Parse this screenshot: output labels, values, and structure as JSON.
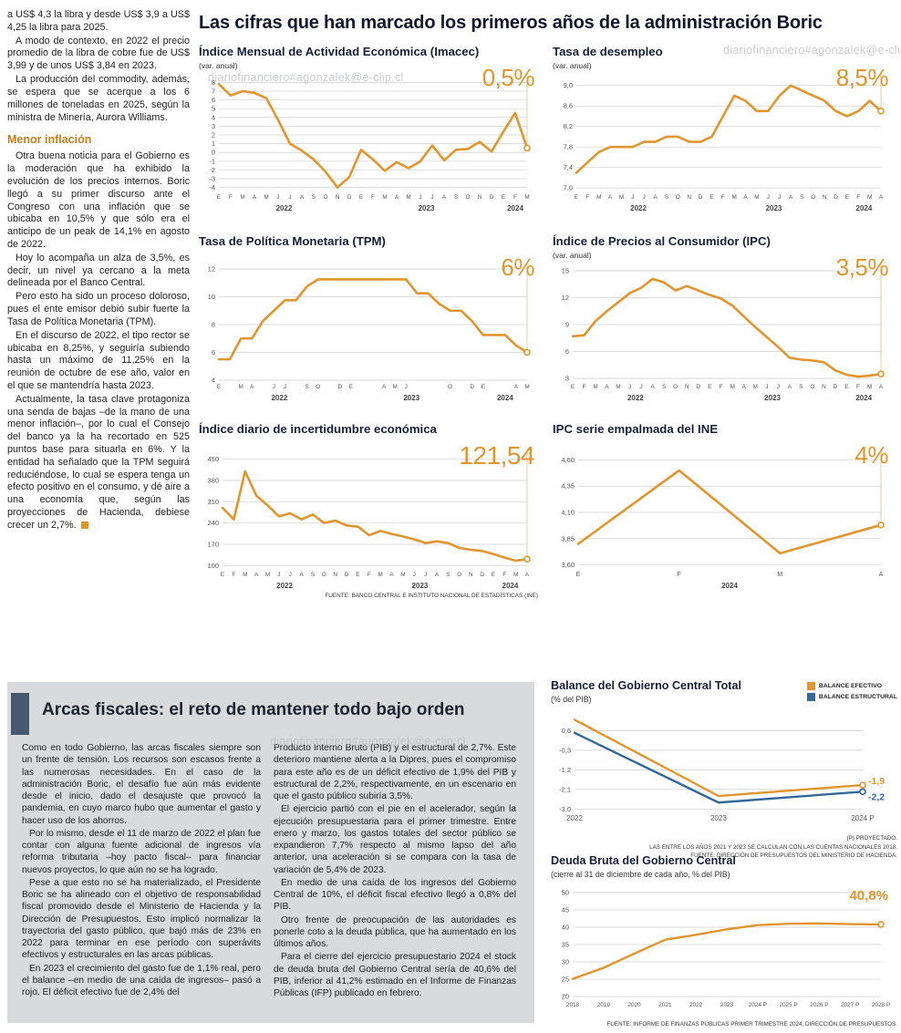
{
  "watermark": "diariofinanciero#agonzalek@e-clip.cl",
  "colors": {
    "orange": "#E2952D",
    "blue": "#33689D",
    "gray_box": "#d9dadb",
    "accent_bar": "#47596e"
  },
  "headline": "Las cifras que han marcado los primeros años de la administración Boric",
  "left_article": {
    "paras_top": [
      "a US$ 4,3 la libra y desde US$ 3,9 a US$ 4,25 la libra para 2025.",
      "A modo de contexto, en 2022 el precio promedio de la libra de cobre fue de US$ 3,99 y de unos US$ 3,84 en 2023.",
      "La producción del commodity, además, se espera que se acerque a los 6 millones de toneladas en 2025, según la ministra de Minería, Aurora Williams."
    ],
    "subhead": "Menor inflación",
    "paras_bottom": [
      "Otra buena noticia para el Gobierno es la moderación que ha exhibido la evolución de los precios internos. Boric llegó a su primer discurso ante el Congreso con una inflación que se ubicaba en 10,5% y que sólo era el anticipo de un peak de 14,1% en agosto de 2022.",
      "Hoy lo acompaña un alza de 3,5%, es decir, un nivel ya cercano a la meta delineada por el Banco Central.",
      "Pero esto ha sido un proceso doloroso, pues el ente emisor debió subir fuerte la Tasa de Política Monetaria (TPM).",
      "En el discurso de 2022, el tipo rector se ubicaba en 8,25%, y seguiría subiendo hasta un máximo de 11,25% en la reunión de octubre de ese año, valor en el que se mantendría hasta 2023.",
      "Actualmente, la tasa clave protagoniza una senda de bajas –de la mano de una menor inflación–, por lo cual el Consejo del banco ya la ha recortado en 525 puntos base para situarla en 6%. Y la entidad ha señalado que la TPM seguirá reduciéndose, lo cual se espera tenga un efecto positivo en el consumo, y dé aire a una economía que, según las proyecciones de Hacienda, debiese crecer un 2,7%."
    ]
  },
  "source_top": "FUENTE: BANCO CENTRAL E INSTITUTO NACIONAL DE ESTADÍSTICAS (INE)",
  "chart_data": [
    {
      "type": "line",
      "title": "Índice Mensual de Actividad Económica (Imacec)",
      "subtitle": "(var. anual)",
      "big_label": "0,5%",
      "ylim": [
        -4.35,
        8.35
      ],
      "yticks": [
        [
          8,
          "8"
        ],
        [
          7,
          "7"
        ],
        [
          6,
          "6"
        ],
        [
          5,
          "5"
        ],
        [
          4,
          "4"
        ],
        [
          3,
          "3"
        ],
        [
          2,
          "2"
        ],
        [
          1,
          "1"
        ],
        [
          0,
          "0"
        ],
        [
          -1,
          "-1"
        ],
        [
          -2,
          "-2"
        ],
        [
          -3,
          "-3"
        ],
        [
          -4,
          "-4"
        ]
      ],
      "x_labels": [
        "E",
        "F",
        "M",
        "A",
        "M",
        "J",
        "J",
        "A",
        "S",
        "O",
        "N",
        "D",
        "E",
        "F",
        "M",
        "A",
        "M",
        "J",
        "J",
        "A",
        "S",
        "O",
        "N",
        "D",
        "E",
        "F",
        "M"
      ],
      "year_groups": [
        {
          "label": "2022",
          "from": 0,
          "to": 11
        },
        {
          "label": "2023",
          "from": 12,
          "to": 23
        },
        {
          "label": "2024",
          "from": 24,
          "to": 26
        }
      ],
      "ml": 22,
      "series": [
        {
          "name": "Imacec",
          "color": "#E2952D",
          "width": 2.6,
          "values": [
            7.8,
            6.5,
            7.0,
            6.8,
            6.2,
            3.7,
            1.0,
            0.2,
            -0.8,
            -2.2,
            -4.0,
            -2.8,
            0.3,
            -0.8,
            -2.1,
            -1.1,
            -1.8,
            -1.0,
            0.8,
            -0.9,
            0.3,
            0.4,
            1.2,
            0.1,
            2.4,
            4.5,
            0.5
          ]
        }
      ]
    },
    {
      "type": "line",
      "title": "Tasa de desempleo",
      "subtitle": "(var. anual)",
      "big_label": "8,5%",
      "ylim": [
        6.95,
        9.12
      ],
      "yticks": [
        [
          9.0,
          "9,0"
        ],
        [
          8.6,
          "8,6"
        ],
        [
          8.2,
          "8,2"
        ],
        [
          7.8,
          "7,8"
        ],
        [
          7.4,
          "7,4"
        ],
        [
          7.0,
          "7,0"
        ]
      ],
      "x_labels": [
        "E",
        "F",
        "M",
        "A",
        "M",
        "J",
        "J",
        "A",
        "S",
        "O",
        "N",
        "D",
        "E",
        "F",
        "M",
        "A",
        "M",
        "J",
        "J",
        "A",
        "S",
        "O",
        "N",
        "D",
        "E",
        "F",
        "M",
        "A"
      ],
      "year_groups": [
        {
          "label": "2022",
          "from": 0,
          "to": 11
        },
        {
          "label": "2023",
          "from": 12,
          "to": 23
        },
        {
          "label": "2024",
          "from": 24,
          "to": 27
        }
      ],
      "ml": 26,
      "series": [
        {
          "name": "Tasa de desempleo",
          "color": "#E2952D",
          "width": 2.6,
          "values": [
            7.3,
            7.5,
            7.7,
            7.8,
            7.8,
            7.8,
            7.9,
            7.9,
            8.0,
            8.0,
            7.9,
            7.9,
            8.0,
            8.4,
            8.8,
            8.7,
            8.5,
            8.5,
            8.8,
            9.0,
            8.9,
            8.8,
            8.7,
            8.5,
            8.4,
            8.5,
            8.7,
            8.5
          ]
        }
      ]
    },
    {
      "type": "line",
      "title": "Tasa de Política Monetaria (TPM)",
      "subtitle": "",
      "big_label": "6%",
      "ylim": [
        4,
        12
      ],
      "yticks": [
        [
          12,
          "12"
        ],
        [
          10,
          "10"
        ],
        [
          8,
          "8"
        ],
        [
          6,
          "6"
        ],
        [
          4,
          "4"
        ]
      ],
      "x_labels": [
        "E",
        "",
        "M",
        "A",
        "",
        "J",
        "J",
        "",
        "S",
        "O",
        "",
        "D",
        "E",
        "",
        "",
        "A",
        "M",
        "J",
        "",
        "",
        "",
        "O",
        "",
        "D",
        "E",
        "",
        "",
        "A",
        "M"
      ],
      "year_groups": [
        {
          "label": "2022",
          "from": 0,
          "to": 11
        },
        {
          "label": "2023",
          "from": 12,
          "to": 23
        },
        {
          "label": "2024",
          "from": 24,
          "to": 28
        }
      ],
      "ml": 22,
      "series": [
        {
          "name": "TPM",
          "color": "#E2952D",
          "width": 2.6,
          "values": [
            5.5,
            5.5,
            7.0,
            7.0,
            8.25,
            9.0,
            9.75,
            9.75,
            10.75,
            11.25,
            11.25,
            11.25,
            11.25,
            11.25,
            11.25,
            11.25,
            11.25,
            11.25,
            10.25,
            10.25,
            9.5,
            9.0,
            9.0,
            8.25,
            7.25,
            7.25,
            7.25,
            6.5,
            6.0
          ]
        }
      ]
    },
    {
      "type": "line",
      "title": "Índice de Precios al Consumidor (IPC)",
      "subtitle": "(var. anual)",
      "big_label": "3,5%",
      "ylim": [
        2.8,
        15.2
      ],
      "yticks": [
        [
          15,
          "15"
        ],
        [
          12,
          "12"
        ],
        [
          9,
          "9"
        ],
        [
          6,
          "6"
        ],
        [
          3,
          "3"
        ]
      ],
      "x_labels": [
        "E",
        "F",
        "M",
        "A",
        "M",
        "J",
        "J",
        "A",
        "S",
        "O",
        "N",
        "D",
        "E",
        "F",
        "M",
        "A",
        "M",
        "J",
        "J",
        "A",
        "S",
        "O",
        "N",
        "D",
        "E",
        "F",
        "M",
        "A"
      ],
      "year_groups": [
        {
          "label": "2022",
          "from": 0,
          "to": 11
        },
        {
          "label": "2023",
          "from": 12,
          "to": 23
        },
        {
          "label": "2024",
          "from": 24,
          "to": 27
        }
      ],
      "ml": 22,
      "series": [
        {
          "name": "IPC",
          "color": "#E2952D",
          "width": 2.6,
          "values": [
            7.7,
            7.8,
            9.4,
            10.5,
            11.5,
            12.5,
            13.1,
            14.1,
            13.7,
            12.8,
            13.3,
            12.8,
            12.3,
            11.9,
            11.1,
            9.9,
            8.7,
            7.6,
            6.5,
            5.3,
            5.1,
            5.0,
            4.8,
            3.9,
            3.4,
            3.2,
            3.3,
            3.5
          ]
        }
      ]
    },
    {
      "type": "line",
      "title": "Índice diario de incertidumbre económica",
      "subtitle": "",
      "big_label": "121,54",
      "ylim": [
        92,
        458
      ],
      "yticks": [
        [
          450,
          "450"
        ],
        [
          380,
          "380"
        ],
        [
          310,
          "310"
        ],
        [
          240,
          "240"
        ],
        [
          170,
          "170"
        ],
        [
          100,
          "100"
        ]
      ],
      "x_labels": [
        "E",
        "F",
        "M",
        "A",
        "M",
        "J",
        "J",
        "A",
        "S",
        "O",
        "N",
        "D",
        "E",
        "F",
        "M",
        "A",
        "M",
        "J",
        "J",
        "A",
        "S",
        "O",
        "N",
        "D",
        "E",
        "F",
        "M",
        "A"
      ],
      "year_groups": [
        {
          "label": "2022",
          "from": 0,
          "to": 11
        },
        {
          "label": "2023",
          "from": 12,
          "to": 23
        },
        {
          "label": "2024",
          "from": 24,
          "to": 27
        }
      ],
      "ml": 26,
      "series": [
        {
          "name": "Incertidumbre económica",
          "color": "#E2952D",
          "width": 2.6,
          "values": [
            290,
            252,
            410,
            330,
            298,
            262,
            272,
            252,
            268,
            240,
            248,
            232,
            228,
            200,
            214,
            204,
            196,
            186,
            174,
            180,
            174,
            158,
            152,
            148,
            138,
            126,
            116,
            121.54
          ]
        }
      ]
    },
    {
      "type": "line",
      "title": "IPC serie empalmada del INE",
      "subtitle": "",
      "big_label": "4%",
      "ylim": [
        3.57,
        4.63
      ],
      "yticks": [
        [
          4.6,
          "4,60"
        ],
        [
          4.35,
          "4,35"
        ],
        [
          4.1,
          "4,10"
        ],
        [
          3.85,
          "3,85"
        ],
        [
          3.6,
          "3,60"
        ]
      ],
      "x_labels": [
        "E",
        "F",
        "M",
        "A"
      ],
      "xs": 7,
      "year_groups": [
        {
          "label": "2024",
          "from": 0,
          "to": 3
        }
      ],
      "ml": 28,
      "series": [
        {
          "name": "IPC empalmado",
          "color": "#E2952D",
          "width": 2.6,
          "values": [
            3.8,
            4.5,
            3.71,
            3.98
          ]
        }
      ]
    },
    {
      "type": "line",
      "title": "Balance del Gobierno Central Total",
      "subtitle": "(% del PIB)",
      "legend": [
        {
          "label": "BALANCE EFECTIVO",
          "color": "#E2952D"
        },
        {
          "label": "BALANCE ESTRUCTURAL",
          "color": "#33689D"
        }
      ],
      "ylim": [
        -3.15,
        1.2
      ],
      "yticks": [
        [
          0.6,
          "0,6"
        ],
        [
          -0.3,
          "-0,3"
        ],
        [
          -1.2,
          "-1,2"
        ],
        [
          -2.1,
          "-2,1"
        ],
        [
          -3.0,
          "-3,0"
        ]
      ],
      "x_labels": [
        "2022",
        "2023",
        "2024 P"
      ],
      "xs": 8,
      "ml": 26,
      "mr": 38,
      "drop_line": false,
      "series": [
        {
          "name": "Balance efectivo",
          "color": "#E2952D",
          "width": 2.4,
          "end_label": "-1,9",
          "label_dy": -1,
          "values": [
            1.1,
            -2.4,
            -1.9
          ]
        },
        {
          "name": "Balance estructural",
          "color": "#33689D",
          "width": 2.4,
          "end_label": "-2,2",
          "label_dy": 9,
          "values": [
            0.5,
            -2.7,
            -2.2
          ]
        }
      ],
      "notes": [
        "(P) PROYECTADO.",
        "LAS ENTRE LOS AÑOS 2021 Y 2023 SE CALCULAN  CON LAS CUENTAS NACIONALES 2018.",
        "FUENTE: DIRECCIÓN DE PRESUPUESTOS DEL MINISTERIO DE HACIENDA."
      ]
    },
    {
      "type": "line",
      "title": "Deuda Bruta del Gobierno Central",
      "subtitle": "(cierre al 31 de diciembre de cada año, % del PIB)",
      "big_label": "40,8%",
      "ylim": [
        19.5,
        50.5
      ],
      "yticks": [
        [
          50,
          "50"
        ],
        [
          45,
          "45"
        ],
        [
          40,
          "40"
        ],
        [
          35,
          "35"
        ],
        [
          30,
          "30"
        ],
        [
          25,
          "25"
        ],
        [
          20,
          "20"
        ]
      ],
      "x_labels": [
        "2018",
        "2019",
        "2020",
        "2021",
        "2022",
        "2023",
        "2024 P",
        "2025 P",
        "2026 P",
        "2027 P",
        "2028 P"
      ],
      "xs": 6.4,
      "ml": 24,
      "mr": 18,
      "drop_line": false,
      "series": [
        {
          "name": "Deuda bruta",
          "color": "#E2952D",
          "width": 2.4,
          "values": [
            25.1,
            28.3,
            32.4,
            36.4,
            37.8,
            39.4,
            40.6,
            41.0,
            41.1,
            40.9,
            40.8
          ]
        }
      ],
      "note": "FUENTE: INFORME DE FINANZAS PÚBLICAS PRIMER TRIMESTRE 2024, DIRECCIÓN DE PRESUPUESTOS."
    }
  ],
  "fiscal": {
    "title": "Arcas fiscales: el reto de mantener todo bajo orden",
    "col1": [
      "Como en todo Gobierno, las arcas fiscales siempre son un frente de tensión. Los recursos son escasos frente a las numerosas necesidades. En el caso de la administración Boric, el desafío fue aún más evidente desde el inicio, dado el desajuste que provocó la pandemia, en cuyo marco hubo que aumentar el gasto y hacer uso de los ahorros.",
      "Por lo mismo, desde el 11 de marzo de 2022 el plan fue contar con alguna fuente adicional de ingresos vía reforma tributaria –hoy pacto fiscal– para financiar nuevos proyectos, lo que aún no se ha logrado.",
      "Pese a que esto no se ha materializado, el Presidente Boric se ha alineado con el objetivo de responsabilidad fiscal promovido desde el Ministerio de Hacienda y la Dirección de Presupuestos. Esto implicó normalizar la trayectoria del gasto público, que bajó más de 23% en 2022 para terminar en ese período con superávits efectivos y estructurales en las arcas públicas.",
      "En 2023 el crecimiento del gasto fue de 1,1% real, pero el balance –en medio de una caída de ingresos– pasó a rojo. El déficit efectivo fue de 2,4% del"
    ],
    "col2": [
      "Producto Interno Bruto (PIB) y el estructural de 2,7%. Este deterioro mantiene alerta a la Dipres, pues el compromiso para este año es de un déficit efectivo de 1,9% del PIB y estructural de 2,2%, respectivamente, en un escenario en que el gasto público subiría 3,5%.",
      "El ejercicio partió con el pie en el acelerador, según la ejecución presupuestaria para el primer trimestre. Entre enero y marzo, los gastos totales del sector público se expandieron 7,7% respecto al mismo lapso del año anterior, una aceleración si se compara con la tasa de variación de 5,4% de 2023.",
      "En medio de una caída de los ingresos del Gobierno Central de 10%, el déficit fiscal efectivo llegó a 0,8% del PIB.",
      "Otro frente de preocupación de las autoridades es ponerle coto a la deuda pública, que ha aumentado en los últimos años.",
      "Para el cierre del ejercicio presupuestario 2024 el stock de deuda bruta del Gobierno Central sería de 40,6% del PIB, inferior al 41,2% estimado en el Informe de Finanzas Públicas (IFP) publicado en febrero."
    ]
  }
}
